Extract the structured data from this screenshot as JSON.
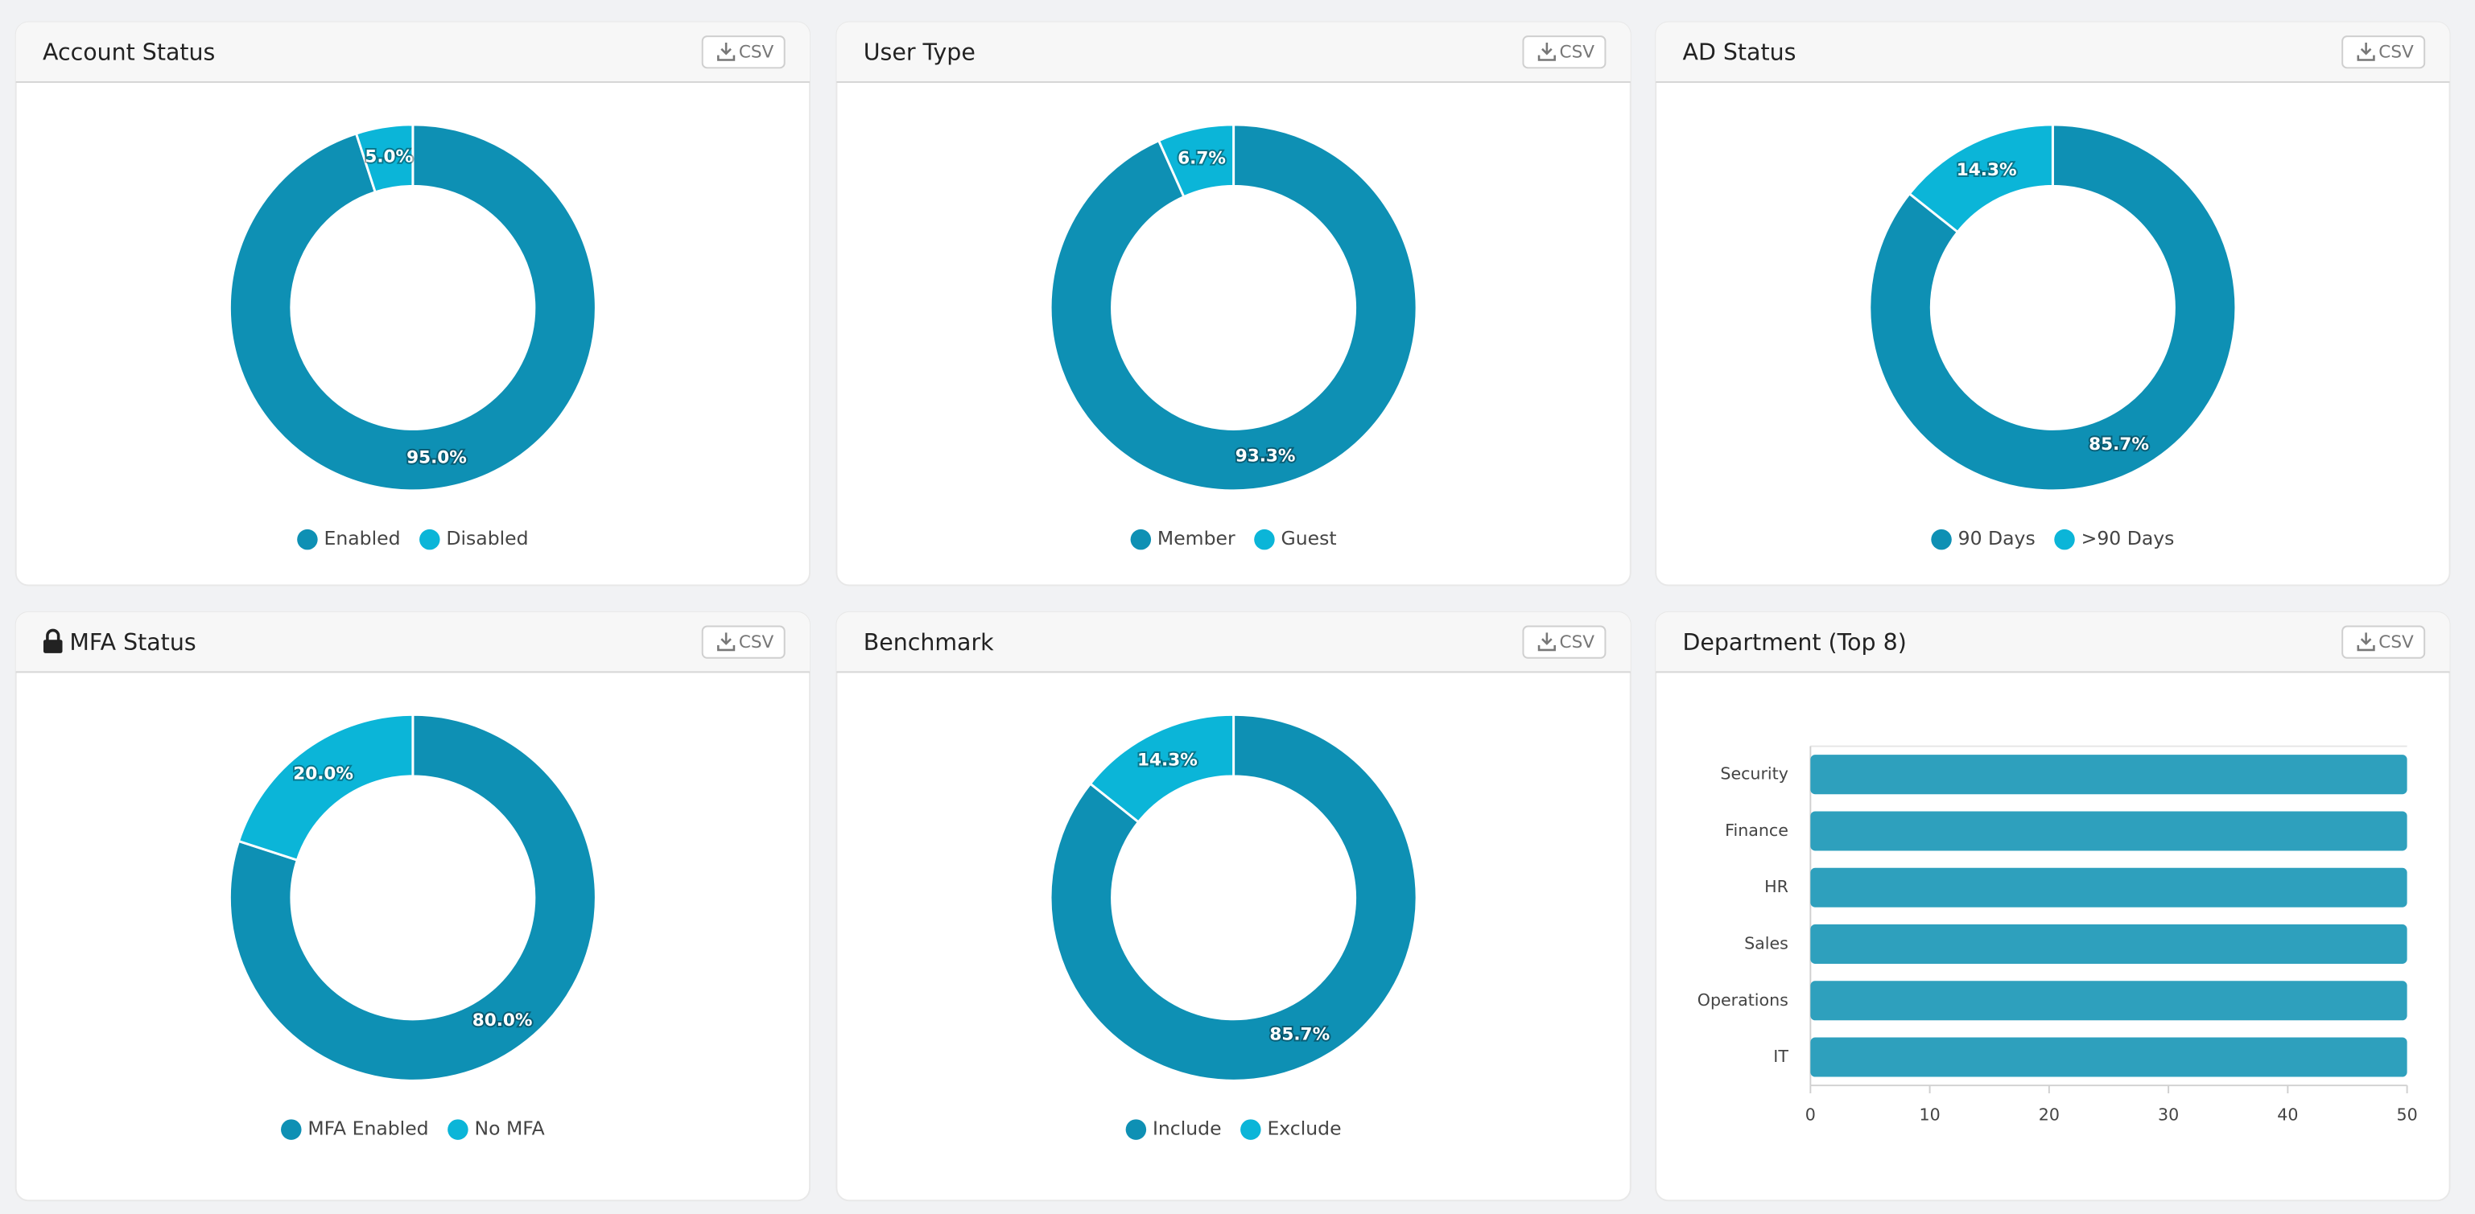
{
  "chart_data": [
    {
      "type": "pie",
      "donut": true,
      "title": "Account Status",
      "button": "CSV",
      "categories": [
        "Enabled",
        "Disabled"
      ],
      "values": [
        95,
        5
      ],
      "value_labels": [
        "95.0%",
        "5.0%"
      ],
      "colors": [
        "#0e90b4",
        "#0bb5d8"
      ]
    },
    {
      "type": "pie",
      "donut": true,
      "title": "User Type",
      "button": "CSV",
      "categories": [
        "Member",
        "Guest"
      ],
      "values": [
        93.3,
        6.7
      ],
      "value_labels": [
        "93.3%",
        "6.7%"
      ],
      "colors": [
        "#0e90b4",
        "#0bb5d8"
      ]
    },
    {
      "type": "pie",
      "donut": true,
      "title": "AD Status",
      "button": "CSV",
      "categories": [
        "90 Days",
        ">90 Days"
      ],
      "values": [
        85.7,
        14.3
      ],
      "value_labels": [
        "85.7%",
        "14.3%"
      ],
      "colors": [
        "#0e90b4",
        "#0bb5d8"
      ]
    },
    {
      "type": "pie",
      "donut": true,
      "title": "MFA Status",
      "button": "CSV",
      "categories": [
        "MFA Enabled",
        "No MFA"
      ],
      "values": [
        80,
        20
      ],
      "value_labels": [
        "80.0%",
        "20.0%"
      ],
      "colors": [
        "#0e90b4",
        "#0bb5d8"
      ]
    },
    {
      "type": "pie",
      "donut": true,
      "title": "Benchmark",
      "button": "CSV",
      "categories": [
        "Include",
        "Exclude"
      ],
      "values": [
        85.7,
        14.3
      ],
      "value_labels": [
        "85.7%",
        "14.3%"
      ],
      "colors": [
        "#0e90b4",
        "#0bb5d8"
      ]
    },
    {
      "type": "bar",
      "orientation": "horizontal",
      "title": "Department (Top 8)",
      "button": "CSV",
      "categories": [
        "Security",
        "Finance",
        "HR",
        "Sales",
        "Operations",
        "IT"
      ],
      "values": [
        50,
        50,
        50,
        50,
        50,
        50
      ],
      "color": "#2ea0bd",
      "xlim": [
        0,
        50
      ],
      "xticks": [
        0,
        10,
        20,
        30,
        40,
        50
      ]
    }
  ]
}
